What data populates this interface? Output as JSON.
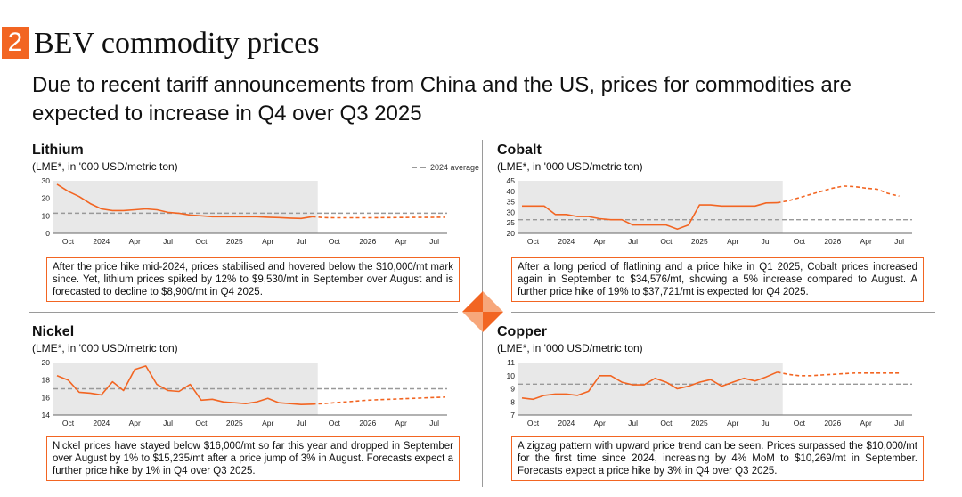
{
  "header": {
    "number": "2",
    "title": "BEV commodity prices",
    "subtitle": "Due to recent tariff announcements from China and the US, prices for commodities are expected to increase in Q4 over Q3 2025"
  },
  "colors": {
    "accent": "#F26522",
    "history_bg": "#e8e8e8",
    "average_line": "#999999"
  },
  "legend_label": "2024 average",
  "panels": [
    {
      "title": "Lithium",
      "unit": "(LME*, in '000 USD/metric ton)",
      "note": "After the price hike mid-2024, prices stabilised and hovered below the $10,000/mt mark since. Yet, lithium prices spiked by 12% to $9,530/mt in September over August and is forecasted to decline to $8,900/mt in Q4 2025."
    },
    {
      "title": "Cobalt",
      "unit": "(LME*, in '000 USD/metric ton)",
      "note": "After a long period of flatlining and a price hike in Q1 2025, Cobalt prices increased again in September to $34,576/mt, showing a 5% increase compared to August. A further price hike of 19% to $37,721/mt is expected for Q4 2025."
    },
    {
      "title": "Nickel",
      "unit": "(LME*, in '000 USD/metric ton)",
      "note": "Nickel prices have stayed below $16,000/mt so far this year and dropped in September over August by 1% to $15,235/mt after a price jump of 3% in August. Forecasts expect a further price hike by 1% in Q4 over Q3 2025."
    },
    {
      "title": "Copper",
      "unit": "(LME*, in '000 USD/metric ton)",
      "note": "A zigzag pattern with upward price trend can be seen. Prices surpassed the $10,000/mt for the first time since 2024, increasing by 4% MoM to $10,269/mt in September. Forecasts expect a price hike by 3% in Q4 over Q3 2025."
    }
  ],
  "chart_data": [
    {
      "type": "line",
      "title": "Lithium",
      "ylabel": "(LME*, in '000 USD/metric ton)",
      "x_tick_labels": [
        "Oct",
        "2024",
        "Apr",
        "Jul",
        "Oct",
        "2025",
        "Apr",
        "Jul",
        "Oct",
        "2026",
        "Apr",
        "Jul"
      ],
      "y_ticks": [
        0,
        10,
        20,
        30
      ],
      "ylim": [
        0,
        30
      ],
      "history_months": 24,
      "series": [
        {
          "values": [
            28,
            24,
            21,
            17,
            14,
            13,
            13,
            13.5,
            14,
            13.5,
            12,
            11.5,
            10.5,
            10,
            9.5,
            9.5,
            9.5,
            9.5,
            9.5,
            9.2,
            9,
            8.7,
            8.5,
            9.53
          ]
        },
        {
          "values": [
            9.53,
            9.0,
            8.9,
            8.9,
            8.9,
            8.9,
            8.95,
            9,
            9.05,
            9.1,
            9.1,
            9.15,
            9.2
          ],
          "style": "dashed"
        }
      ],
      "average": 11.5,
      "legend": "2024 average"
    },
    {
      "type": "line",
      "title": "Cobalt",
      "ylabel": "(LME*, in '000 USD/metric ton)",
      "x_tick_labels": [
        "Oct",
        "2024",
        "Apr",
        "Jul",
        "Oct",
        "2025",
        "Apr",
        "Jul",
        "Oct",
        "2026",
        "Apr",
        "Jul"
      ],
      "y_ticks": [
        20,
        25,
        30,
        35,
        40,
        45
      ],
      "ylim": [
        20,
        45
      ],
      "history_months": 24,
      "series": [
        {
          "values": [
            33,
            33,
            33,
            29,
            29,
            28,
            28,
            27,
            26.5,
            26.5,
            24,
            24,
            24,
            24,
            22,
            24,
            33.5,
            33.5,
            33,
            33,
            33,
            33,
            34.5,
            34.58
          ]
        },
        {
          "values": [
            34.58,
            35.5,
            37,
            38.5,
            40,
            41.5,
            42.5,
            42.2,
            41.5,
            41,
            39,
            37.72
          ],
          "style": "dashed"
        }
      ],
      "average": 26.5
    },
    {
      "type": "line",
      "title": "Nickel",
      "ylabel": "(LME*, in '000 USD/metric ton)",
      "x_tick_labels": [
        "Oct",
        "2024",
        "Apr",
        "Jul",
        "Oct",
        "2025",
        "Apr",
        "Jul",
        "Oct",
        "2026",
        "Apr",
        "Jul"
      ],
      "y_ticks": [
        14,
        16,
        18,
        20
      ],
      "ylim": [
        14,
        20
      ],
      "history_months": 24,
      "series": [
        {
          "values": [
            18.5,
            18,
            16.6,
            16.5,
            16.3,
            17.8,
            16.8,
            19.2,
            19.6,
            17.5,
            16.8,
            16.7,
            17.5,
            15.7,
            15.8,
            15.5,
            15.4,
            15.3,
            15.5,
            15.9,
            15.4,
            15.3,
            15.2,
            15.24
          ]
        },
        {
          "values": [
            15.24,
            15.3,
            15.4,
            15.5,
            15.6,
            15.7,
            15.75,
            15.8,
            15.85,
            15.9,
            15.95,
            16,
            16.05
          ],
          "style": "dashed"
        }
      ],
      "average": 17
    },
    {
      "type": "line",
      "title": "Copper",
      "ylabel": "(LME*, in '000 USD/metric ton)",
      "x_tick_labels": [
        "Oct",
        "2024",
        "Apr",
        "Jul",
        "Oct",
        "2025",
        "Apr",
        "Jul",
        "Oct",
        "2026",
        "Apr",
        "Jul"
      ],
      "y_ticks": [
        7,
        8,
        9,
        10,
        11
      ],
      "ylim": [
        7,
        11
      ],
      "history_months": 24,
      "series": [
        {
          "values": [
            8.3,
            8.2,
            8.5,
            8.6,
            8.6,
            8.5,
            8.8,
            10,
            10,
            9.5,
            9.3,
            9.3,
            9.8,
            9.5,
            9.0,
            9.2,
            9.5,
            9.7,
            9.2,
            9.5,
            9.8,
            9.6,
            9.9,
            10.27
          ]
        },
        {
          "values": [
            10.27,
            10.1,
            10.0,
            10.0,
            10.05,
            10.1,
            10.15,
            10.2,
            10.2,
            10.2,
            10.2,
            10.2
          ],
          "style": "dashed"
        }
      ],
      "average": 9.35
    }
  ]
}
